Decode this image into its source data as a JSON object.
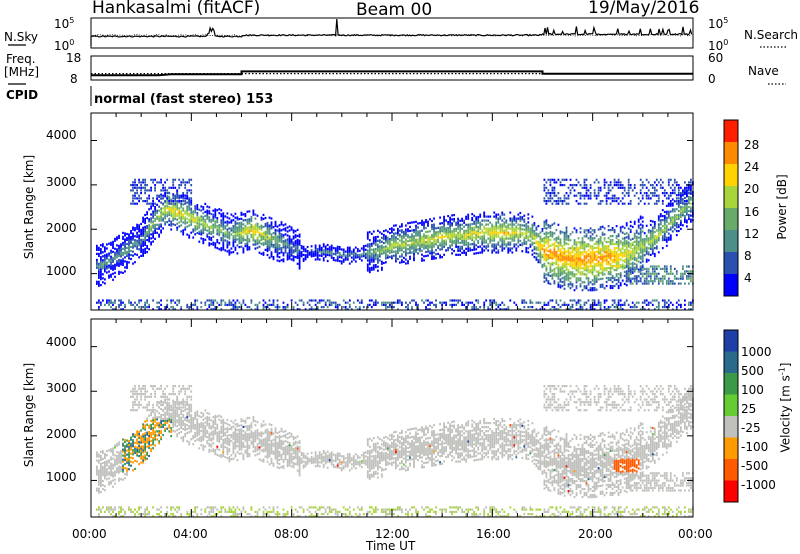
{
  "header": {
    "station": "Hankasalmi (fitACF)",
    "beam": "Beam 00",
    "date": "19/May/2016"
  },
  "chart_data": [
    {
      "type": "line",
      "panel": "noise",
      "left_label": "N.Sky",
      "right_label": "N.Search",
      "left_ticks": [
        "10^5",
        "10^0"
      ],
      "right_ticks": [
        "10^5",
        "10^0"
      ],
      "x_range_hours": [
        0,
        24
      ]
    },
    {
      "type": "line",
      "panel": "frequency-nave",
      "left_label": "Freq.",
      "left_unit": "[MHz]",
      "left_ticks": [
        "18",
        "8"
      ],
      "right_label": "Nave",
      "right_ticks": [
        "60",
        "0"
      ],
      "freq_series_mhz": {
        "x": [
          0,
          2.7,
          3.2,
          6,
          6,
          18,
          18,
          24
        ],
        "y": [
          10.0,
          10.0,
          10.4,
          10.4,
          11.6,
          11.6,
          10.6,
          10.6
        ]
      },
      "nave_dotted_level": 16
    },
    {
      "type": "text",
      "panel": "cpid",
      "label": "CPID",
      "text": "normal (fast stereo) 153"
    },
    {
      "type": "heatmap",
      "panel": "power",
      "ylabel": "Slant Range [km]",
      "y_ticks": [
        "4000",
        "3000",
        "2000",
        "1000"
      ],
      "ylim": [
        180,
        4620
      ],
      "colorbar_label": "Power [dB]",
      "colorbar_ticks": [
        "28",
        "24",
        "20",
        "16",
        "12",
        "8",
        "4"
      ],
      "colorbar_colors": [
        "#0000ff",
        "#2a50b0",
        "#4c8e8a",
        "#67aa6a",
        "#a8d43c",
        "#ffd200",
        "#ff8a00",
        "#ff1e00"
      ],
      "bands": [
        {
          "x": [
            0.3,
            0.9,
            1.5,
            2.0,
            2.5,
            3.0,
            3.5,
            4.0,
            4.5,
            5.0,
            5.5,
            6.0,
            6.5,
            7.0,
            7.5,
            8.0,
            8.5,
            9.0,
            9.5,
            10.0,
            10.5,
            11.0,
            11.5,
            12.0,
            12.5,
            13.0,
            13.5,
            14.0,
            14.5,
            15.0,
            15.5,
            16.0,
            16.5,
            17.0,
            17.5,
            18.0,
            18.5,
            19.0,
            19.5,
            20.0,
            20.5,
            21.0,
            21.5,
            22.0,
            22.5,
            23.0,
            23.5,
            24.0
          ],
          "center_km": [
            1200,
            1350,
            1600,
            1800,
            2200,
            2500,
            2400,
            2250,
            2150,
            2050,
            1900,
            1950,
            2000,
            1850,
            1750,
            1600,
            1500,
            1550,
            1500,
            1450,
            1450,
            1500,
            1550,
            1650,
            1700,
            1750,
            1800,
            1850,
            1900,
            1900,
            1950,
            1950,
            1950,
            1950,
            1900,
            1550,
            1450,
            1350,
            1350,
            1350,
            1400,
            1400,
            1500,
            1650,
            1850,
            2150,
            2450,
            2650
          ],
          "power_db": [
            12,
            12,
            14,
            12,
            18,
            22,
            24,
            22,
            20,
            18,
            16,
            22,
            24,
            20,
            16,
            12,
            8,
            10,
            12,
            12,
            12,
            14,
            18,
            20,
            20,
            20,
            22,
            22,
            20,
            22,
            22,
            24,
            24,
            22,
            20,
            28,
            28,
            28,
            28,
            28,
            28,
            26,
            22,
            20,
            20,
            18,
            18,
            16
          ]
        }
      ]
    },
    {
      "type": "heatmap",
      "panel": "velocity",
      "ylabel": "Slant Range [km]",
      "y_ticks": [
        "4000",
        "3000",
        "2000",
        "1000"
      ],
      "ylim": [
        180,
        4620
      ],
      "colorbar_label": "Velocity [m s^-1]",
      "colorbar_ticks": [
        "1000",
        "500",
        "100",
        "25",
        "-25",
        "-100",
        "-500",
        "-1000"
      ],
      "colorbar_colors": [
        "#ff0000",
        "#ff5a00",
        "#ff9a00",
        "#c0c0bc",
        "#c0c0bc",
        "#66cc33",
        "#3a9a4a",
        "#2a6a8a",
        "#1f3fa8"
      ],
      "xlabel": "Time UT",
      "x_ticks": [
        "00:00",
        "04:00",
        "08:00",
        "12:00",
        "16:00",
        "20:00",
        "00:00"
      ],
      "xlim_hours": [
        0,
        24
      ]
    }
  ]
}
